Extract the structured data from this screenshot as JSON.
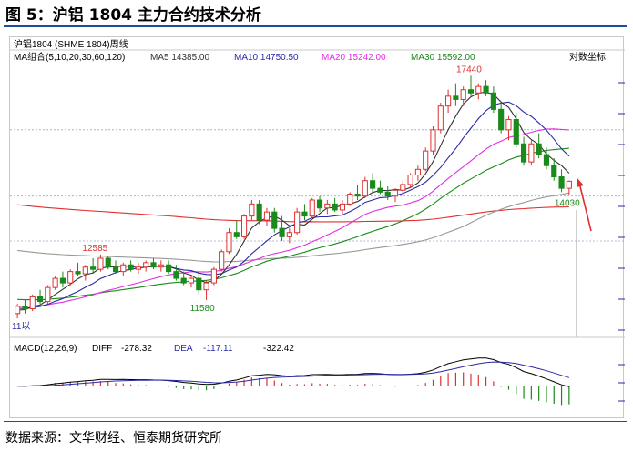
{
  "figure": {
    "title": "图 5：沪铝 1804 主力合约技术分析",
    "source": "数据来源：文华财经、恒泰期货研究所"
  },
  "chart_header": "沪铝1804 (SHME 1804)周线",
  "scale_label": "对数坐标",
  "ma_legend": {
    "label": "MA组合(5,10,20,30,60,120)",
    "items": [
      {
        "name": "MA5",
        "value": "14385.00",
        "color": "#333333"
      },
      {
        "name": "MA10",
        "value": "14750.50",
        "color": "#2a2aa8"
      },
      {
        "name": "MA20",
        "value": "15242.00",
        "color": "#e030e0"
      },
      {
        "name": "MA30",
        "value": "15592.00",
        "color": "#1a8a1a"
      }
    ]
  },
  "macd_legend": {
    "label": "MACD(12,26,9)",
    "diff_label": "DIFF",
    "diff_value": "-278.32",
    "dea_label": "DEA",
    "dea_value": "-117.11",
    "macd_value": "-322.42"
  },
  "annotations": {
    "high": "17440",
    "mid_high": "12585",
    "low": "11580",
    "last_low": "14030",
    "start": "11以"
  },
  "colors": {
    "up": "#e03030",
    "down": "#1a8a1a",
    "ma120": "#e03030",
    "ma60": "#999999",
    "arrow": "#e03030",
    "title_rule": "#1f4e99"
  },
  "chart_data": {
    "type": "candlestick",
    "period": "weekly",
    "price_range": [
      11000,
      17800
    ],
    "candles": [
      [
        11300,
        11500,
        11200,
        11450
      ],
      [
        11450,
        11600,
        11300,
        11400
      ],
      [
        11400,
        11700,
        11350,
        11650
      ],
      [
        11650,
        11800,
        11500,
        11550
      ],
      [
        11550,
        11900,
        11500,
        11850
      ],
      [
        11850,
        12100,
        11800,
        12050
      ],
      [
        12050,
        12200,
        11850,
        11950
      ],
      [
        11950,
        12250,
        11900,
        12200
      ],
      [
        12200,
        12400,
        12100,
        12150
      ],
      [
        12150,
        12350,
        12000,
        12300
      ],
      [
        12300,
        12500,
        12150,
        12250
      ],
      [
        12250,
        12585,
        12200,
        12500
      ],
      [
        12500,
        12550,
        12250,
        12300
      ],
      [
        12300,
        12450,
        12150,
        12200
      ],
      [
        12200,
        12400,
        12100,
        12350
      ],
      [
        12350,
        12450,
        12200,
        12250
      ],
      [
        12250,
        12400,
        12150,
        12300
      ],
      [
        12300,
        12450,
        12200,
        12400
      ],
      [
        12400,
        12500,
        12250,
        12300
      ],
      [
        12300,
        12450,
        12200,
        12350
      ],
      [
        12350,
        12450,
        12150,
        12200
      ],
      [
        12200,
        12350,
        12000,
        12050
      ],
      [
        12050,
        12200,
        11900,
        11950
      ],
      [
        11950,
        12100,
        11850,
        12050
      ],
      [
        12050,
        12200,
        11700,
        11800
      ],
      [
        11800,
        12000,
        11580,
        11950
      ],
      [
        11950,
        12300,
        11900,
        12250
      ],
      [
        12250,
        12700,
        12200,
        12650
      ],
      [
        12650,
        13200,
        12600,
        13100
      ],
      [
        13100,
        13400,
        12950,
        13000
      ],
      [
        13000,
        13550,
        12950,
        13500
      ],
      [
        13500,
        13900,
        13400,
        13800
      ],
      [
        13800,
        13900,
        13300,
        13400
      ],
      [
        13400,
        13700,
        13250,
        13600
      ],
      [
        13600,
        13700,
        13100,
        13200
      ],
      [
        13200,
        13500,
        12900,
        13000
      ],
      [
        13000,
        13200,
        12850,
        13100
      ],
      [
        13100,
        13700,
        13050,
        13600
      ],
      [
        13600,
        13800,
        13400,
        13500
      ],
      [
        13500,
        13950,
        13450,
        13900
      ],
      [
        13900,
        14000,
        13600,
        13700
      ],
      [
        13700,
        13900,
        13550,
        13800
      ],
      [
        13800,
        13950,
        13600,
        13650
      ],
      [
        13650,
        13900,
        13550,
        13800
      ],
      [
        13800,
        14100,
        13750,
        14050
      ],
      [
        14050,
        14300,
        13900,
        14000
      ],
      [
        14000,
        14500,
        13950,
        14400
      ],
      [
        14400,
        14600,
        14100,
        14200
      ],
      [
        14200,
        14400,
        14050,
        14100
      ],
      [
        14100,
        14250,
        13900,
        14000
      ],
      [
        14000,
        14200,
        13850,
        14150
      ],
      [
        14150,
        14400,
        14050,
        14300
      ],
      [
        14300,
        14600,
        14200,
        14550
      ],
      [
        14550,
        14800,
        14400,
        14700
      ],
      [
        14700,
        15300,
        14650,
        15200
      ],
      [
        15200,
        15900,
        15100,
        15800
      ],
      [
        15800,
        16600,
        15700,
        16500
      ],
      [
        16500,
        17000,
        16300,
        16800
      ],
      [
        16800,
        17200,
        16500,
        16700
      ],
      [
        16700,
        17100,
        16500,
        17000
      ],
      [
        17000,
        17440,
        16800,
        16900
      ],
      [
        16900,
        17200,
        16700,
        17100
      ],
      [
        17100,
        17300,
        16800,
        16900
      ],
      [
        16900,
        17100,
        16300,
        16400
      ],
      [
        16400,
        16600,
        15700,
        15800
      ],
      [
        15800,
        16200,
        15500,
        16100
      ],
      [
        16100,
        16300,
        15300,
        15400
      ],
      [
        15400,
        15600,
        14800,
        14900
      ],
      [
        14900,
        15500,
        14800,
        15400
      ],
      [
        15400,
        15700,
        15000,
        15100
      ],
      [
        15100,
        15300,
        14700,
        14800
      ],
      [
        14800,
        15000,
        14400,
        14500
      ],
      [
        14500,
        14700,
        14100,
        14200
      ],
      [
        14200,
        14400,
        14030,
        14385
      ]
    ],
    "macd_range": [
      -900,
      1000
    ]
  }
}
